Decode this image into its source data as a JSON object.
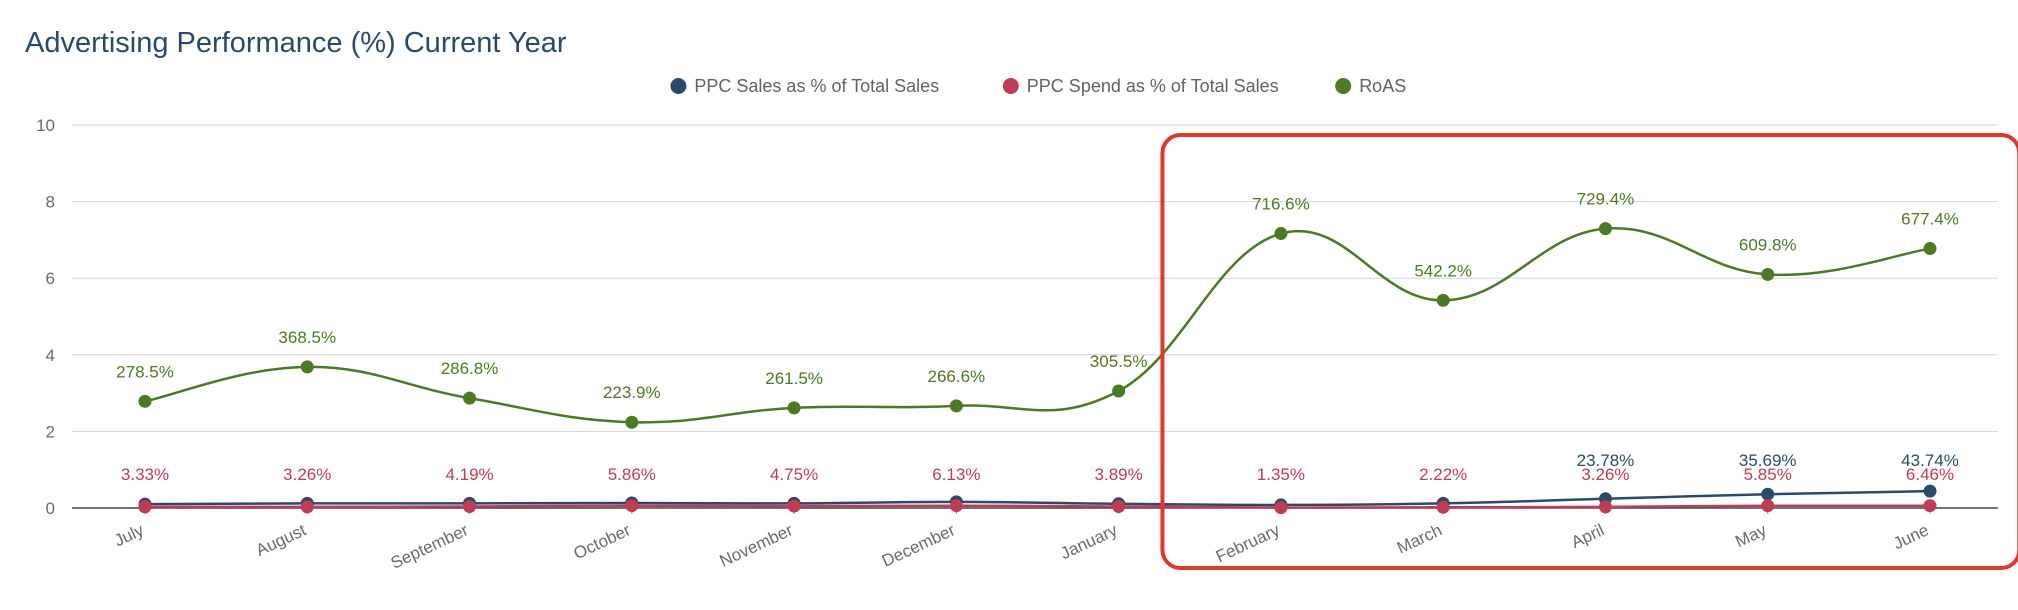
{
  "chart_data": {
    "type": "line",
    "title": "Advertising Performance (%) Current Year",
    "categories": [
      "July",
      "August",
      "September",
      "October",
      "November",
      "December",
      "January",
      "February",
      "March",
      "April",
      "May",
      "June"
    ],
    "ylim": [
      0,
      10
    ],
    "yticks": [
      "0",
      "2",
      "4",
      "6",
      "8",
      "10"
    ],
    "grid": true,
    "legend_position": "top-center",
    "series": [
      {
        "name": "PPC Sales as % of Total Sales",
        "color": "#2b4a6b",
        "values": [
          0.1,
          0.12,
          0.12,
          0.13,
          0.12,
          0.16,
          0.11,
          0.08,
          0.12,
          0.24,
          0.36,
          0.44
        ],
        "labels": [
          "",
          "",
          "",
          "",
          "",
          "",
          "",
          "",
          "",
          "23.78%",
          "35.69%",
          "43.74%"
        ]
      },
      {
        "name": "PPC Spend as % of Total Sales",
        "color": "#c23b55",
        "values": [
          0.03,
          0.03,
          0.04,
          0.06,
          0.05,
          0.06,
          0.04,
          0.01,
          0.02,
          0.03,
          0.06,
          0.06
        ],
        "labels": [
          "3.33%",
          "3.26%",
          "4.19%",
          "5.86%",
          "4.75%",
          "6.13%",
          "3.89%",
          "1.35%",
          "2.22%",
          "3.26%",
          "5.85%",
          "6.46%"
        ]
      },
      {
        "name": "RoAS",
        "color": "#4c7a22",
        "values": [
          2.785,
          3.685,
          2.868,
          2.239,
          2.615,
          2.666,
          3.055,
          7.166,
          5.422,
          7.294,
          6.098,
          6.774
        ],
        "labels": [
          "278.5%",
          "368.5%",
          "286.8%",
          "223.9%",
          "261.5%",
          "266.6%",
          "305.5%",
          "716.6%",
          "542.2%",
          "729.4%",
          "609.8%",
          "677.4%"
        ]
      }
    ],
    "annotations": [
      {
        "type": "highlight-box",
        "color": "#e0382b",
        "from": "February",
        "to": "June"
      }
    ]
  }
}
